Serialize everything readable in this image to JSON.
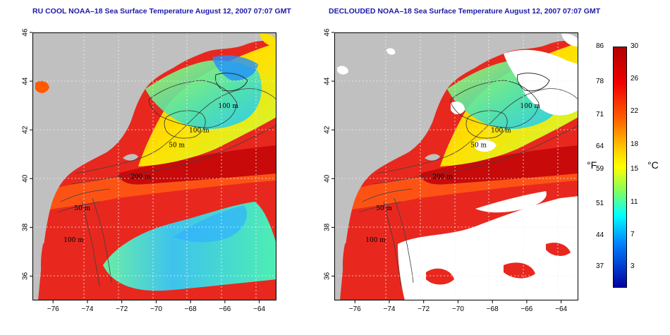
{
  "left_panel": {
    "title": "RU COOL NOAA–18 Sea Surface Temperature August 12, 2007 07:07 GMT"
  },
  "right_panel": {
    "title": "DECLOUDED NOAA–18 Sea Surface Temperature August 12, 2007 07:07 GMT"
  },
  "axes": {
    "lon_ticks": [
      -76,
      -74,
      -72,
      -70,
      -68,
      -66,
      -64
    ],
    "lat_ticks": [
      36,
      38,
      40,
      42,
      44,
      46
    ],
    "lon_range": [
      -77.2,
      -63.0
    ],
    "lat_range": [
      35.0,
      46.0
    ]
  },
  "contour_labels": [
    {
      "text": "100 m",
      "lon": -65.8,
      "lat": 42.9
    },
    {
      "text": "100 m",
      "lon": -67.5,
      "lat": 41.9
    },
    {
      "text": "50 m",
      "lon": -68.8,
      "lat": 41.3
    },
    {
      "text": "200 m",
      "lon": -70.9,
      "lat": 40.0
    },
    {
      "text": "50 m",
      "lon": -74.3,
      "lat": 38.7
    },
    {
      "text": "100 m",
      "lon": -74.8,
      "lat": 37.4
    }
  ],
  "colorbar": {
    "fahrenheit_labels": [
      "86",
      "78",
      "71",
      "64",
      "59",
      "51",
      "44",
      "37"
    ],
    "celsius_labels": [
      "30",
      "26",
      "22",
      "18",
      "15",
      "11",
      "7",
      "3"
    ],
    "fahrenheit_unit": "°F",
    "celsius_unit": "°C",
    "colors": [
      "#ff0000",
      "#f04020",
      "#ff8c00",
      "#ffd700",
      "#e0ff30",
      "#60ff80",
      "#00e0ff",
      "#2080ff",
      "#0000c0"
    ]
  },
  "colors": {
    "land": "#c0c0c0",
    "cloud_cleared": "#ffffff",
    "warm_water": "#e8281e",
    "gulf_stream": "#c80a0a",
    "cool_shelf": "#ffd200",
    "gulf_of_maine": "#60e0a0",
    "cloud_cold": "#40c8ff",
    "title": "#1a1aa8"
  }
}
